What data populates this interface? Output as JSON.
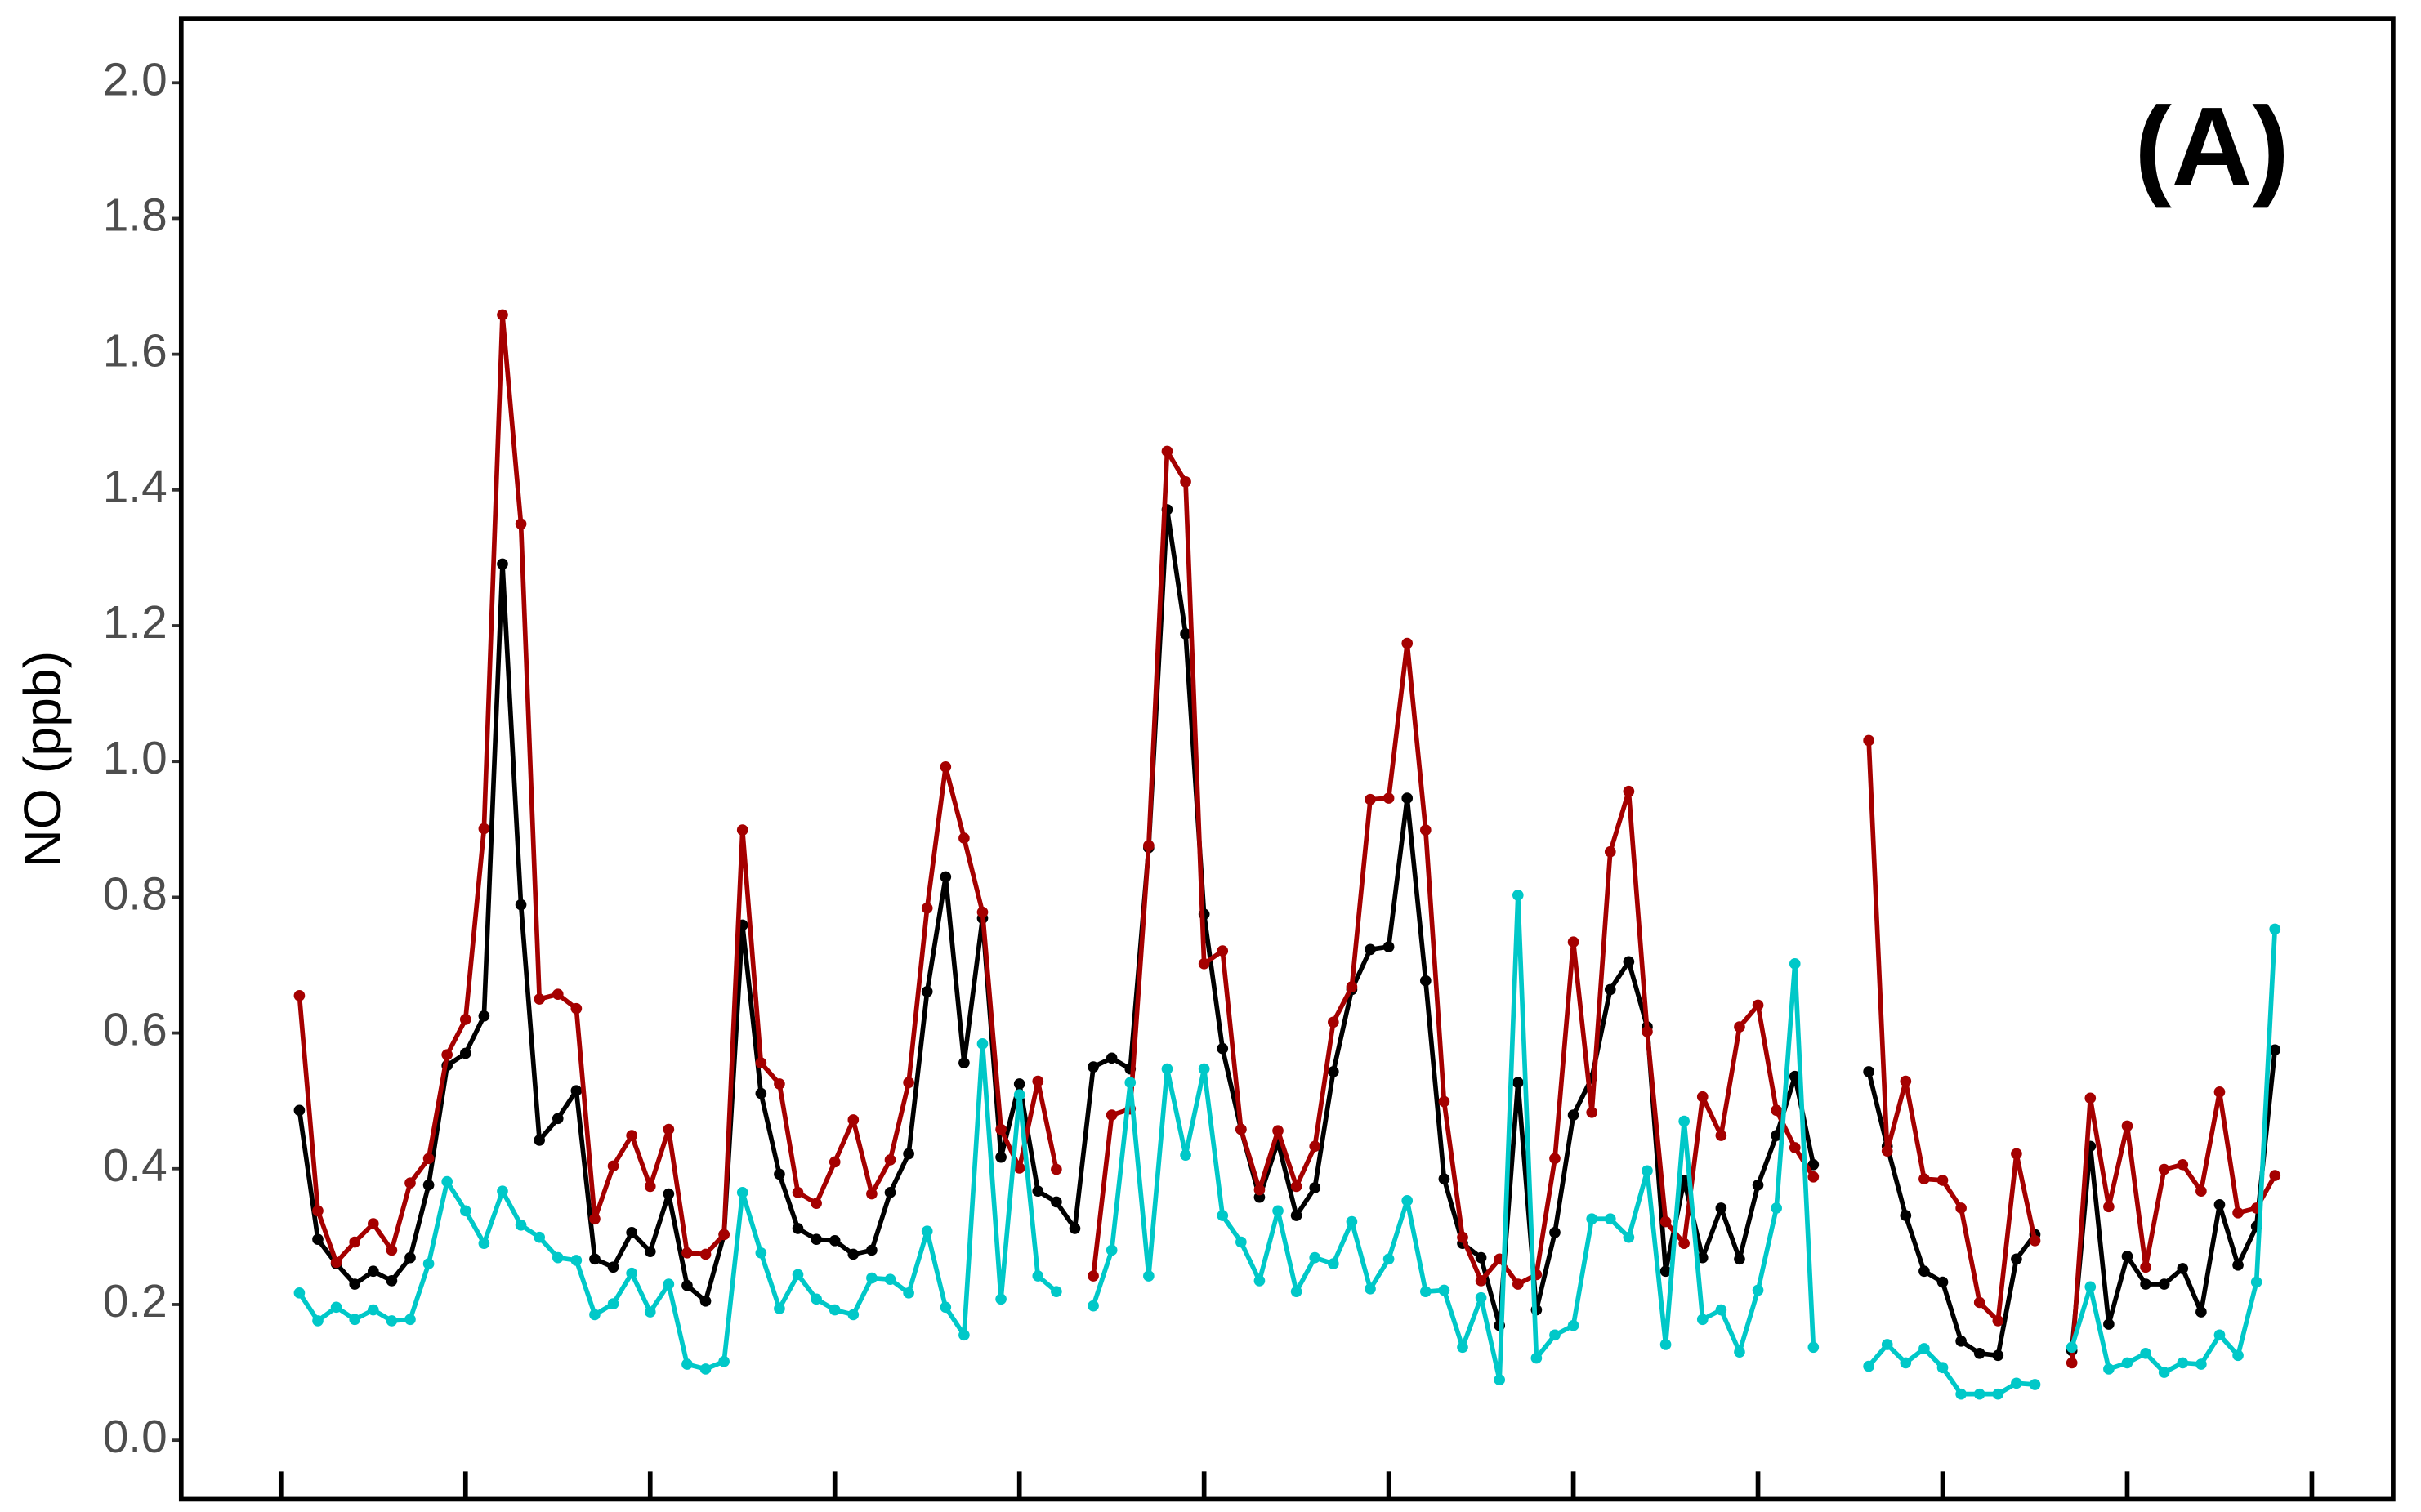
{
  "chart_data": {
    "type": "line",
    "y_label": "NO (ppb)",
    "annotation": "(A)",
    "x": [
      1,
      2,
      3,
      4,
      5,
      6,
      7,
      8,
      9,
      10,
      11,
      12,
      13,
      14,
      15,
      16,
      17,
      18,
      19,
      20,
      21,
      22,
      23,
      24,
      25,
      26,
      27,
      28,
      29,
      30,
      31,
      32,
      33,
      34,
      35,
      36,
      37,
      38,
      39,
      40,
      41,
      42,
      43,
      44,
      45,
      46,
      47,
      48,
      49,
      50,
      51,
      52,
      53,
      54,
      55,
      56,
      57,
      58,
      59,
      60,
      61,
      62,
      63,
      64,
      65,
      66,
      67,
      68,
      69,
      70,
      71,
      72,
      73,
      74,
      75,
      76,
      77,
      78,
      79,
      80,
      81,
      82,
      83,
      84,
      85,
      86,
      87,
      88,
      89,
      90,
      91,
      92,
      93,
      94,
      95,
      96,
      97,
      98,
      99,
      100,
      101,
      102,
      103,
      104,
      105,
      106,
      107,
      108
    ],
    "series": [
      {
        "color": "#000000",
        "values": [
          0.486,
          0.296,
          0.26,
          0.23,
          0.249,
          0.235,
          0.269,
          0.376,
          0.552,
          0.57,
          0.625,
          1.291,
          0.789,
          0.442,
          0.474,
          0.515,
          0.267,
          0.255,
          0.306,
          0.278,
          0.363,
          0.228,
          0.205,
          0.303,
          0.759,
          0.511,
          0.392,
          0.312,
          0.296,
          0.294,
          0.274,
          0.28,
          0.365,
          0.422,
          0.661,
          0.83,
          0.556,
          0.769,
          0.417,
          0.525,
          0.367,
          0.351,
          0.312,
          0.55,
          0.563,
          0.547,
          0.873,
          1.371,
          1.188,
          0.775,
          0.577,
          0.458,
          0.358,
          0.44,
          0.331,
          0.372,
          0.543,
          0.664,
          0.723,
          0.727,
          0.946,
          0.677,
          0.385,
          0.29,
          0.269,
          0.169,
          0.527,
          0.192,
          0.306,
          0.479,
          0.534,
          0.664,
          0.705,
          0.609,
          0.249,
          0.383,
          0.269,
          0.342,
          0.267,
          0.376,
          0.449,
          0.536,
          0.406,
          null,
          null,
          0.543,
          0.433,
          0.331,
          0.249,
          0.233,
          0.146,
          0.128,
          0.125,
          0.267,
          0.303,
          null,
          0.132,
          0.433,
          0.171,
          0.271,
          0.23,
          0.23,
          0.253,
          0.189,
          0.347,
          0.258,
          0.315,
          0.575
        ]
      },
      {
        "color": "#a50000",
        "values": [
          0.655,
          0.338,
          0.262,
          0.292,
          0.319,
          0.28,
          0.379,
          0.415,
          0.568,
          0.62,
          0.901,
          1.658,
          1.35,
          0.65,
          0.657,
          0.636,
          0.326,
          0.404,
          0.449,
          0.374,
          0.458,
          0.276,
          0.274,
          0.303,
          0.899,
          0.556,
          0.525,
          0.365,
          0.349,
          0.41,
          0.472,
          0.363,
          0.413,
          0.527,
          0.784,
          0.992,
          0.887,
          0.778,
          0.458,
          0.401,
          0.529,
          0.399,
          null,
          0.242,
          0.479,
          0.488,
          0.876,
          1.457,
          1.412,
          0.702,
          0.721,
          0.458,
          0.369,
          0.456,
          0.374,
          0.433,
          0.616,
          0.668,
          0.944,
          0.946,
          1.174,
          0.899,
          0.499,
          0.299,
          0.235,
          0.267,
          0.23,
          0.244,
          0.415,
          0.734,
          0.483,
          0.867,
          0.956,
          0.602,
          0.322,
          0.29,
          0.506,
          0.449,
          0.609,
          0.641,
          0.486,
          0.431,
          0.388,
          null,
          null,
          1.031,
          0.426,
          0.529,
          0.385,
          0.383,
          0.342,
          0.203,
          0.176,
          0.422,
          0.294,
          null,
          0.114,
          0.504,
          0.344,
          0.463,
          0.255,
          0.399,
          0.406,
          0.367,
          0.513,
          0.335,
          0.342,
          0.39
        ]
      },
      {
        "color": "#00c8c8",
        "values": [
          0.217,
          0.176,
          0.196,
          0.178,
          0.192,
          0.176,
          0.178,
          0.26,
          0.381,
          0.338,
          0.29,
          0.367,
          0.317,
          0.299,
          0.269,
          0.265,
          0.185,
          0.201,
          0.246,
          0.189,
          0.23,
          0.112,
          0.105,
          0.116,
          0.365,
          0.276,
          0.194,
          0.244,
          0.208,
          0.192,
          0.185,
          0.239,
          0.237,
          0.217,
          0.308,
          0.196,
          0.155,
          0.584,
          0.208,
          0.509,
          0.242,
          0.219,
          null,
          0.198,
          0.28,
          0.527,
          0.242,
          0.547,
          0.42,
          0.547,
          0.331,
          0.292,
          0.235,
          0.338,
          0.219,
          0.269,
          0.26,
          0.322,
          0.223,
          0.267,
          0.353,
          0.219,
          0.221,
          0.137,
          0.21,
          0.089,
          0.803,
          0.121,
          0.155,
          0.169,
          0.326,
          0.326,
          0.299,
          0.397,
          0.141,
          0.47,
          0.178,
          0.192,
          0.13,
          0.221,
          0.342,
          0.702,
          0.137,
          null,
          null,
          0.109,
          0.141,
          0.114,
          0.135,
          0.107,
          0.068,
          0.068,
          0.068,
          0.084,
          0.082,
          null,
          0.137,
          0.226,
          0.105,
          0.114,
          0.128,
          0.1,
          0.114,
          0.112,
          0.155,
          0.125,
          0.233,
          0.753
        ]
      }
    ],
    "xlim": [
      -5.4,
      114.4
    ],
    "xticks": [
      0,
      10,
      20,
      30,
      40,
      50,
      60,
      70,
      80,
      90,
      100,
      110
    ],
    "ylim": [
      -0.087,
      2.094
    ],
    "yticks": [
      {
        "value": 0,
        "label": "0.0"
      },
      0.2,
      0.4,
      0.6,
      0.8,
      {
        "value": 1,
        "label": "1.0"
      },
      1.2,
      1.4,
      1.6,
      1.8,
      {
        "value": 2,
        "label": "2.0"
      }
    ],
    "grid": false
  }
}
